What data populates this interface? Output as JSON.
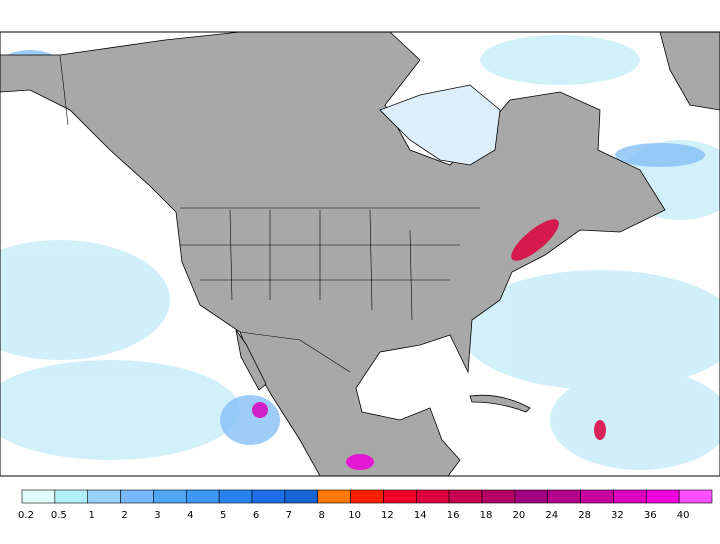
{
  "legend": {
    "entries": [
      {
        "label": "0.2",
        "color": "#e1ffff"
      },
      {
        "label": "0.5",
        "color": "#b4f0fa"
      },
      {
        "label": "1",
        "color": "#96d2fa"
      },
      {
        "label": "2",
        "color": "#78b9fa"
      },
      {
        "label": "3",
        "color": "#50a5f5"
      },
      {
        "label": "4",
        "color": "#3c97f5"
      },
      {
        "label": "5",
        "color": "#2883f0"
      },
      {
        "label": "6",
        "color": "#1e6eeb"
      },
      {
        "label": "7",
        "color": "#1464d2"
      },
      {
        "label": "8",
        "color": "#ff7800"
      },
      {
        "label": "10",
        "color": "#ff1e00"
      },
      {
        "label": "12",
        "color": "#f00028"
      },
      {
        "label": "14",
        "color": "#dc003c"
      },
      {
        "label": "16",
        "color": "#c80050"
      },
      {
        "label": "18",
        "color": "#b40064"
      },
      {
        "label": "20",
        "color": "#a0007f"
      },
      {
        "label": "24",
        "color": "#b4008c"
      },
      {
        "label": "28",
        "color": "#c800a0"
      },
      {
        "label": "32",
        "color": "#dc00be"
      },
      {
        "label": "36",
        "color": "#f000dc"
      },
      {
        "label": "40",
        "color": "#ff50ff"
      }
    ]
  }
}
